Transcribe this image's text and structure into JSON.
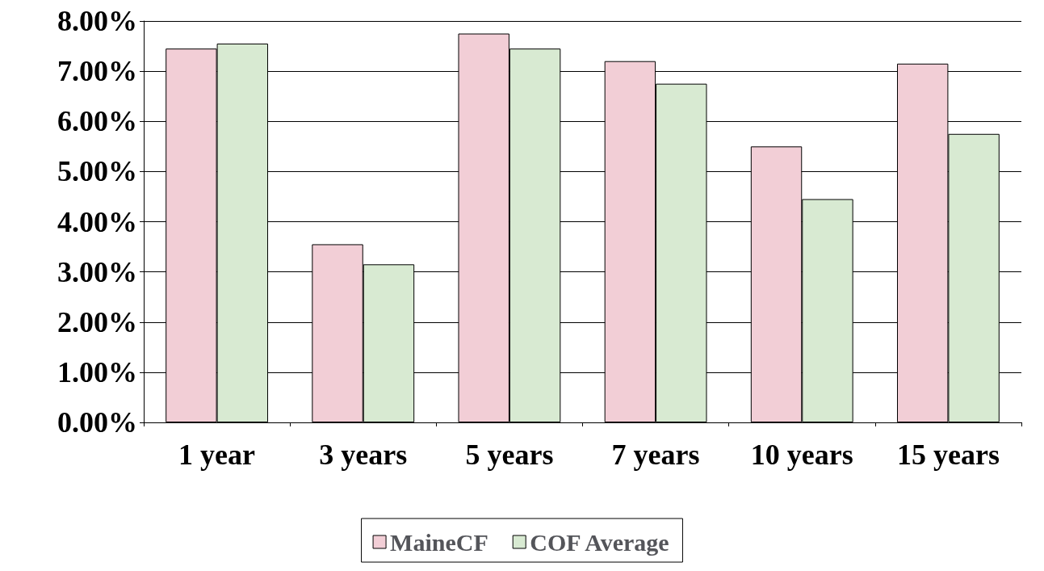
{
  "chart_data": {
    "type": "bar",
    "categories": [
      "1 year",
      "3 years",
      "5 years",
      "7 years",
      "10 years",
      "15 years"
    ],
    "series": [
      {
        "name": "MaineCF",
        "color": "#f2ced6",
        "values": [
          7.45,
          3.55,
          7.75,
          7.2,
          5.5,
          7.15
        ]
      },
      {
        "name": "COF Average",
        "color": "#d8ead2",
        "values": [
          7.55,
          3.15,
          7.45,
          6.75,
          4.45,
          5.75
        ]
      }
    ],
    "ylim": [
      0,
      8
    ],
    "yticks": [
      {
        "value": 0,
        "label": "0.00%"
      },
      {
        "value": 1,
        "label": "1.00%"
      },
      {
        "value": 2,
        "label": "2.00%"
      },
      {
        "value": 3,
        "label": "3.00%"
      },
      {
        "value": 4,
        "label": "4.00%"
      },
      {
        "value": 5,
        "label": "5.00%"
      },
      {
        "value": 6,
        "label": "6.00%"
      },
      {
        "value": 7,
        "label": "7.00%"
      },
      {
        "value": 8,
        "label": "8.00%"
      }
    ],
    "grid": "y",
    "legend": "bottom"
  }
}
